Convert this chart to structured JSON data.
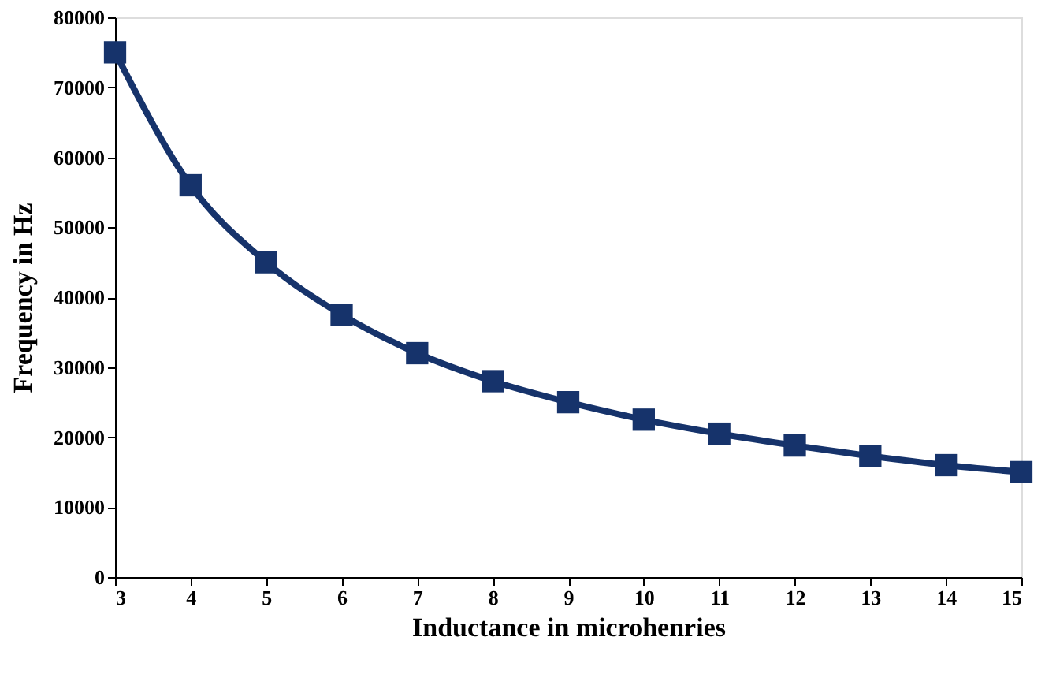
{
  "chart_data": {
    "type": "line",
    "xlabel": "Inductance in microhenries",
    "ylabel": "Frequency in Hz",
    "x": [
      3,
      4,
      5,
      6,
      7,
      8,
      9,
      10,
      11,
      12,
      13,
      14,
      15
    ],
    "series": [
      {
        "color": "#16336b",
        "values": [
          75000,
          56000,
          45000,
          37500,
          32000,
          28000,
          25000,
          22500,
          20500,
          18800,
          17300,
          16000,
          15000
        ]
      }
    ],
    "xlim": [
      3,
      15
    ],
    "xticks": [
      3,
      4,
      5,
      6,
      7,
      8,
      9,
      10,
      11,
      12,
      13,
      14,
      15
    ],
    "ylim": [
      0,
      80000
    ],
    "yticks": [
      0,
      10000,
      20000,
      30000,
      40000,
      50000,
      60000,
      70000,
      80000
    ],
    "grid": false,
    "marker": "square",
    "line_style": "solid"
  }
}
